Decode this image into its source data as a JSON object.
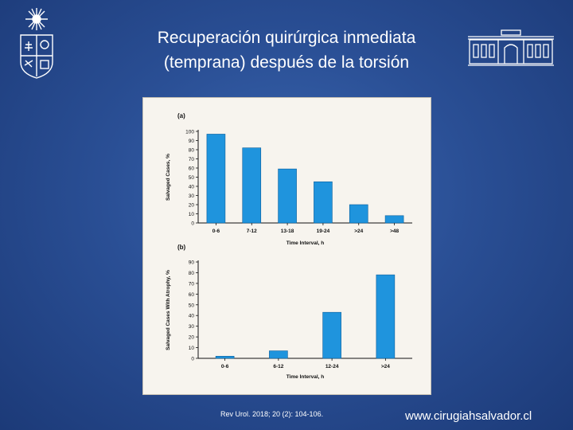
{
  "slide": {
    "title_line1": "Recuperación quirúrgica inmediata",
    "title_line2": "(temprana) después de la torsión",
    "citation": "Rev Urol. 2018; 20 (2): 104-106.",
    "website": "www.cirugiahsalvador.cl"
  },
  "colors": {
    "bar": "#1f94dd",
    "frame_bg": "#f7f4ee",
    "text": "#111111"
  },
  "icons": {
    "left": "university-crest-icon",
    "right": "building-facade-icon"
  },
  "chart_data": [
    {
      "type": "bar",
      "panel_label": "(a)",
      "categories": [
        "0-6",
        "7-12",
        "13-18",
        "19-24",
        ">24",
        ">48"
      ],
      "values": [
        97,
        82,
        59,
        45,
        20,
        8
      ],
      "xlabel": "Time Interval, h",
      "ylabel": "Salvaged Cases, %",
      "ylim": [
        0,
        100
      ],
      "yticks": [
        0,
        10,
        20,
        30,
        40,
        50,
        60,
        70,
        80,
        90,
        100
      ],
      "grid": false
    },
    {
      "type": "bar",
      "panel_label": "(b)",
      "categories": [
        "0-6",
        "6-12",
        "12-24",
        ">24"
      ],
      "values": [
        2,
        7,
        43,
        78
      ],
      "xlabel": "Time Interval, h",
      "ylabel": "Salvaged Cases With Atrophy, %",
      "ylim": [
        0,
        90
      ],
      "yticks": [
        0,
        10,
        20,
        30,
        40,
        50,
        60,
        70,
        80,
        90
      ],
      "grid": false
    }
  ]
}
